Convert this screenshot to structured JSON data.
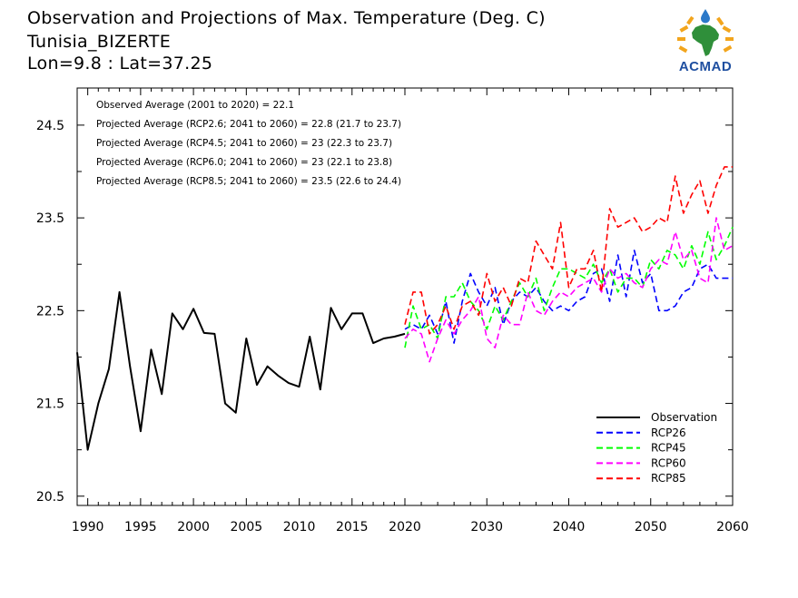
{
  "header": {
    "line1": "Observation and Projections of Max. Temperature (Deg. C)",
    "line2": "Tunisia_BIZERTE",
    "line3": "Lon=9.8 : Lat=37.25"
  },
  "logo": {
    "text": "ACMAD",
    "icon": "africa-map-logo-icon"
  },
  "annotations": [
    "Observed Average (2001 to 2020) = 22.1",
    "Projected Average (RCP2.6; 2041 to 2060) = 22.8 (21.7 to 23.7)",
    "Projected Average (RCP4.5; 2041 to 2060) = 23 (22.3 to 23.7)",
    "Projected Average (RCP6.0; 2041 to 2060) = 23 (22.1 to 23.8)",
    "Projected Average (RCP8.5; 2041 to 2060) = 23.5 (22.6 to 24.4)"
  ],
  "chart_data": {
    "type": "line",
    "xlim": [
      1989,
      2060
    ],
    "ylim": [
      20.4,
      24.9
    ],
    "x_ticks_left": [
      1990,
      1995,
      2000,
      2005,
      2010,
      2015,
      2020
    ],
    "x_ticks_right": [
      2030,
      2040,
      2050,
      2060
    ],
    "y_ticks": [
      20.5,
      21.5,
      22.5,
      23.5,
      24.5
    ],
    "y_tick_labels": [
      "20.5",
      "21.5",
      "22.5",
      "23.5",
      "24.5"
    ],
    "legend_position": "bottom-right",
    "series": [
      {
        "name": "Observation",
        "color": "#000000",
        "style": "solid",
        "x": [
          1989,
          1990,
          1991,
          1992,
          1993,
          1994,
          1995,
          1996,
          1997,
          1998,
          1999,
          2000,
          2001,
          2002,
          2003,
          2004,
          2005,
          2006,
          2007,
          2008,
          2009,
          2010,
          2011,
          2012,
          2013,
          2014,
          2015,
          2016,
          2017,
          2018,
          2019,
          2020
        ],
        "y": [
          22.05,
          21.0,
          21.5,
          21.87,
          22.7,
          21.9,
          21.2,
          22.08,
          21.6,
          22.47,
          22.3,
          22.52,
          22.26,
          22.25,
          21.5,
          21.4,
          22.2,
          21.7,
          21.9,
          21.8,
          21.72,
          21.68,
          22.22,
          21.65,
          22.53,
          22.3,
          22.47,
          22.47,
          22.15,
          22.2,
          22.22,
          22.25
        ]
      },
      {
        "name": "RCP26",
        "color": "#0000ff",
        "style": "dashed",
        "x": [
          2020,
          2021,
          2022,
          2023,
          2024,
          2025,
          2026,
          2027,
          2028,
          2029,
          2030,
          2031,
          2032,
          2033,
          2034,
          2035,
          2036,
          2037,
          2038,
          2039,
          2040,
          2041,
          2042,
          2043,
          2044,
          2045,
          2046,
          2047,
          2048,
          2049,
          2050,
          2051,
          2052,
          2053,
          2054,
          2055,
          2056,
          2057,
          2058,
          2059,
          2060
        ],
        "y": [
          22.3,
          22.35,
          22.3,
          22.45,
          22.25,
          22.6,
          22.15,
          22.6,
          22.9,
          22.7,
          22.55,
          22.75,
          22.35,
          22.6,
          22.7,
          22.65,
          22.75,
          22.6,
          22.5,
          22.55,
          22.5,
          22.6,
          22.65,
          22.9,
          22.95,
          22.6,
          23.1,
          22.65,
          23.15,
          22.8,
          22.9,
          22.5,
          22.5,
          22.55,
          22.7,
          22.75,
          22.95,
          23.0,
          22.85,
          22.85,
          22.85
        ]
      },
      {
        "name": "RCP45",
        "color": "#00ff00",
        "style": "dashed",
        "x": [
          2020,
          2021,
          2022,
          2023,
          2024,
          2025,
          2026,
          2027,
          2028,
          2029,
          2030,
          2031,
          2032,
          2033,
          2034,
          2035,
          2036,
          2037,
          2038,
          2039,
          2040,
          2041,
          2042,
          2043,
          2044,
          2045,
          2046,
          2047,
          2048,
          2049,
          2050,
          2051,
          2052,
          2053,
          2054,
          2055,
          2056,
          2057,
          2058,
          2059,
          2060
        ],
        "y": [
          22.1,
          22.55,
          22.3,
          22.35,
          22.2,
          22.65,
          22.65,
          22.8,
          22.6,
          22.5,
          22.3,
          22.55,
          22.4,
          22.6,
          22.8,
          22.65,
          22.85,
          22.5,
          22.75,
          22.95,
          22.95,
          22.9,
          22.85,
          23.0,
          22.8,
          22.95,
          22.7,
          22.85,
          22.85,
          22.75,
          23.05,
          22.95,
          23.15,
          23.1,
          22.95,
          23.2,
          23.0,
          23.35,
          23.05,
          23.2,
          23.4
        ]
      },
      {
        "name": "RCP60",
        "color": "#ff00ff",
        "style": "dashed",
        "x": [
          2020,
          2021,
          2022,
          2023,
          2024,
          2025,
          2026,
          2027,
          2028,
          2029,
          2030,
          2031,
          2032,
          2033,
          2034,
          2035,
          2036,
          2037,
          2038,
          2039,
          2040,
          2041,
          2042,
          2043,
          2044,
          2045,
          2046,
          2047,
          2048,
          2049,
          2050,
          2051,
          2052,
          2053,
          2054,
          2055,
          2056,
          2057,
          2058,
          2059,
          2060
        ],
        "y": [
          22.2,
          22.3,
          22.25,
          21.95,
          22.2,
          22.4,
          22.25,
          22.4,
          22.5,
          22.65,
          22.2,
          22.1,
          22.45,
          22.35,
          22.35,
          22.7,
          22.5,
          22.45,
          22.6,
          22.7,
          22.65,
          22.75,
          22.8,
          22.85,
          22.7,
          22.95,
          22.85,
          22.9,
          22.8,
          22.75,
          22.95,
          23.05,
          23.0,
          23.35,
          23.05,
          23.15,
          22.85,
          22.8,
          23.5,
          23.15,
          23.2
        ]
      },
      {
        "name": "RCP85",
        "color": "#ff0000",
        "style": "dashed",
        "x": [
          2020,
          2021,
          2022,
          2023,
          2024,
          2025,
          2026,
          2027,
          2028,
          2029,
          2030,
          2031,
          2032,
          2033,
          2034,
          2035,
          2036,
          2037,
          2038,
          2039,
          2040,
          2041,
          2042,
          2043,
          2044,
          2045,
          2046,
          2047,
          2048,
          2049,
          2050,
          2051,
          2052,
          2053,
          2054,
          2055,
          2056,
          2057,
          2058,
          2059,
          2060
        ],
        "y": [
          22.35,
          22.7,
          22.7,
          22.25,
          22.35,
          22.55,
          22.3,
          22.55,
          22.6,
          22.45,
          22.9,
          22.6,
          22.75,
          22.55,
          22.85,
          22.8,
          23.25,
          23.1,
          22.95,
          23.45,
          22.75,
          22.95,
          22.95,
          23.15,
          22.7,
          23.6,
          23.4,
          23.45,
          23.5,
          23.35,
          23.4,
          23.5,
          23.45,
          23.95,
          23.55,
          23.75,
          23.9,
          23.55,
          23.85,
          24.05,
          24.05
        ]
      }
    ]
  }
}
